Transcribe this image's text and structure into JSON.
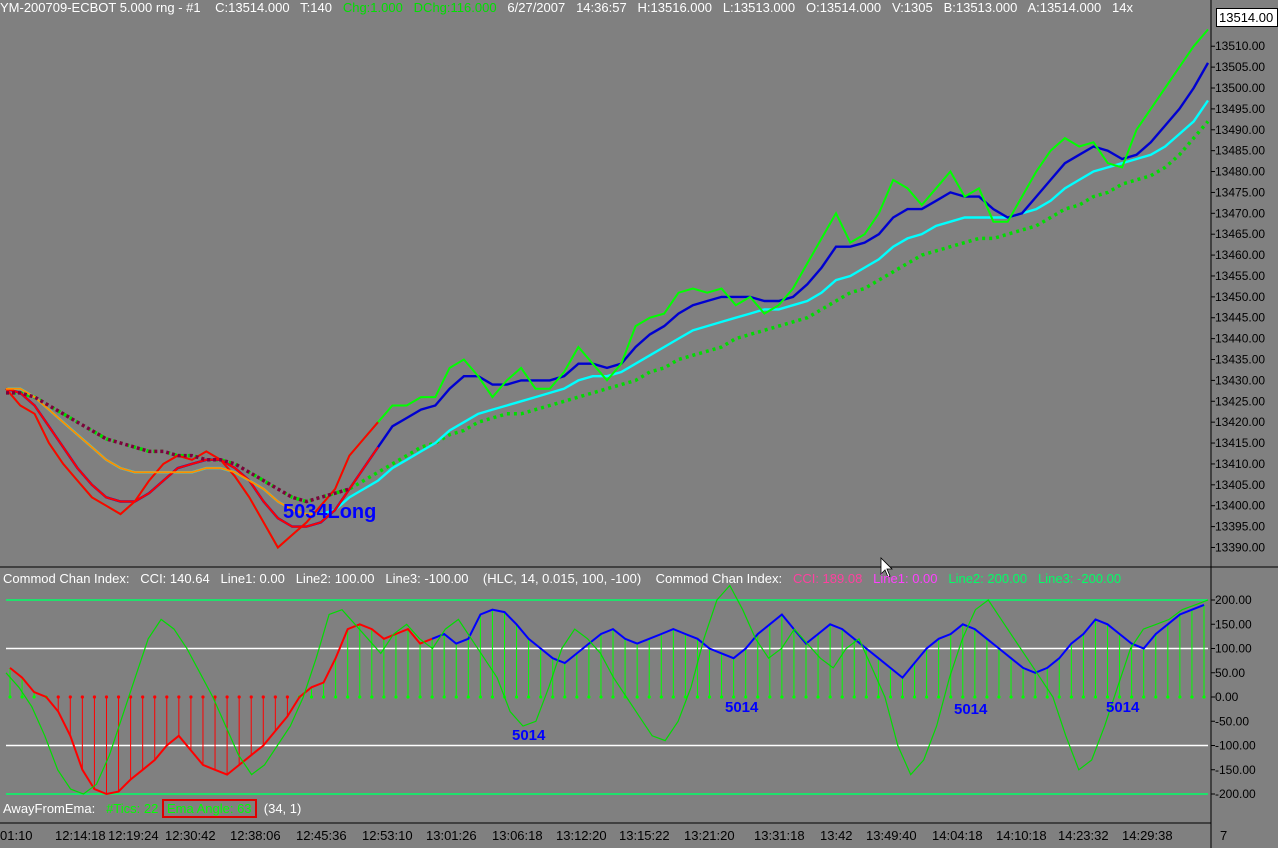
{
  "header": {
    "symbol": "YM-200709-ECBOT  5.000 rng - #1",
    "close": "C:13514.000",
    "ticks": "T:140",
    "chg": "Chg:1.000",
    "dchg": "DChg:116.000",
    "date": "6/27/2007",
    "time": "14:36:57",
    "high": "H:13516.000",
    "low": "L:13513.000",
    "open": "O:13514.000",
    "volume": "V:1305",
    "bid": "B:13513.000",
    "ask": "A:13514.000",
    "tail": "14x"
  },
  "price_marker": "13514.00",
  "indicator_info": {
    "cci1_name": "Commod Chan Index:",
    "cci1_val": "CCI: 140.64",
    "cci1_l1": "Line1: 0.00",
    "cci1_l2": "Line2: 100.00",
    "cci1_l3": "Line3: -100.00",
    "cci1_params": "(HLC, 14, 0.015, 100, -100)",
    "cci2_name": "Commod Chan Index:",
    "cci2_val": "CCI: 189.08",
    "cci2_l1": "Line1: 0.00",
    "cci2_l2": "Line2: 200.00",
    "cci2_l3": "Line3: -200.00"
  },
  "footer_indicator": {
    "name": "AwayFromEma:",
    "tics": "#Tics: 22",
    "angle": "Ema Angle: 63",
    "params": "(34, 1)"
  },
  "x_labels": [
    "01:10",
    "12:14:18",
    "12:19:24",
    "12:30:42",
    "12:38:06",
    "12:45:36",
    "12:53:10",
    "13:01:26",
    "13:06:18",
    "13:12:20",
    "13:15:22",
    "13:21:20",
    "13:31:18",
    "13:42",
    "13:49:40",
    "14:04:18",
    "14:10:18",
    "14:23:32",
    "14:29:38",
    "7"
  ],
  "annotations": {
    "long_label": "5034Long",
    "labels": [
      "5014",
      "5014",
      "5014",
      "5014"
    ]
  },
  "colors": {
    "background": "#808080",
    "price": "#00ff00",
    "ema_fast": "#0000d0",
    "ema_mid": "#00ffff",
    "ema_slow_dots": "#00dd00",
    "down": "#ff0000",
    "orange": "#ff8c00",
    "maroon_dots": "#800040"
  },
  "chart_data": [
    {
      "type": "line",
      "title": "",
      "y_ticks": [
        13514.0,
        13510.0,
        13505.0,
        13500.0,
        13495.0,
        13490.0,
        13485.0,
        13480.0,
        13475.0,
        13470.0,
        13465.0,
        13460.0,
        13455.0,
        13450.0,
        13445.0,
        13440.0,
        13435.0,
        13430.0,
        13425.0,
        13420.0,
        13415.0,
        13410.0,
        13405.0,
        13400.0,
        13395.0,
        13390.0
      ],
      "ylim": [
        13387,
        13517
      ],
      "bar_count": 200,
      "series": [
        {
          "values": [
            13428,
            13424,
            13422,
            13415,
            13410,
            13406,
            13402,
            13400,
            13398,
            13401,
            13406,
            13410,
            13412,
            13411,
            13413,
            13411,
            13407,
            13402,
            13396,
            13390,
            13393,
            13396,
            13400,
            13404,
            13412,
            13416,
            13420,
            13424,
            13424,
            13426,
            13426,
            13433,
            13435,
            13431,
            13426,
            13430,
            13433,
            13428,
            13428,
            13432,
            13438,
            13434,
            13430,
            13434,
            13443,
            13445,
            13446,
            13451,
            13452,
            13451,
            13452,
            13448,
            13450,
            13446,
            13448,
            13452,
            13458,
            13464,
            13470,
            13463,
            13465,
            13470,
            13478,
            13476,
            13472,
            13476,
            13480,
            13474,
            13476,
            13468,
            13468,
            13474,
            13480,
            13485,
            13488,
            13486,
            13487,
            13482,
            13481,
            13490,
            13495,
            13500,
            13505,
            13510,
            13514
          ]
        },
        {
          "values": [
            13428,
            13427,
            13424,
            13419,
            13414,
            13409,
            13405,
            13402,
            13401,
            13401,
            13403,
            13406,
            13409,
            13410,
            13411,
            13411,
            13409,
            13406,
            13401,
            13397,
            13395,
            13395,
            13396,
            13399,
            13404,
            13409,
            13414,
            13419,
            13421,
            13423,
            13424,
            13428,
            13431,
            13431,
            13429,
            13429,
            13430,
            13430,
            13430,
            13431,
            13434,
            13434,
            13433,
            13434,
            13438,
            13441,
            13443,
            13446,
            13448,
            13449,
            13450,
            13450,
            13450,
            13449,
            13449,
            13450,
            13453,
            13457,
            13462,
            13462,
            13463,
            13465,
            13469,
            13471,
            13471,
            13473,
            13475,
            13474,
            13474,
            13471,
            13469,
            13470,
            13474,
            13478,
            13482,
            13484,
            13486,
            13485,
            13483,
            13484,
            13487,
            13491,
            13495,
            13500,
            13506
          ]
        },
        {
          "values": [
            13428,
            13428,
            13426,
            13423,
            13420,
            13417,
            13414,
            13411,
            13409,
            13408,
            13408,
            13408,
            13408,
            13408,
            13409,
            13409,
            13408,
            13406,
            13404,
            13401,
            13399,
            13398,
            13398,
            13399,
            13402,
            13404,
            13406,
            13409,
            13411,
            13413,
            13415,
            13418,
            13420,
            13422,
            13423,
            13424,
            13425,
            13426,
            13427,
            13428,
            13430,
            13431,
            13431,
            13432,
            13434,
            13436,
            13438,
            13440,
            13442,
            13443,
            13444,
            13445,
            13446,
            13447,
            13447,
            13448,
            13449,
            13451,
            13454,
            13455,
            13457,
            13459,
            13462,
            13464,
            13465,
            13467,
            13468,
            13469,
            13469,
            13469,
            13469,
            13470,
            13471,
            13473,
            13476,
            13478,
            13480,
            13481,
            13482,
            13483,
            13484,
            13486,
            13489,
            13492,
            13497
          ]
        },
        {
          "values": [
            13427,
            13427,
            13426,
            13424,
            13422,
            13420,
            13418,
            13416,
            13415,
            13414,
            13413,
            13413,
            13412,
            13412,
            13411,
            13411,
            13410,
            13408,
            13406,
            13404,
            13402,
            13401,
            13402,
            13403,
            13404,
            13406,
            13408,
            13410,
            13412,
            13414,
            13415,
            13417,
            13418,
            13420,
            13421,
            13422,
            13422,
            13423,
            13424,
            13425,
            13426,
            13427,
            13428,
            13429,
            13430,
            13432,
            13433,
            13435,
            13436,
            13437,
            13438,
            13440,
            13441,
            13442,
            13443,
            13444,
            13445,
            13447,
            13449,
            13451,
            13452,
            13454,
            13456,
            13458,
            13460,
            13461,
            13462,
            13463,
            13464,
            13464,
            13465,
            13466,
            13467,
            13469,
            13471,
            13472,
            13474,
            13475,
            13477,
            13478,
            13479,
            13481,
            13484,
            13488,
            13492
          ]
        }
      ]
    },
    {
      "type": "bar",
      "title": "",
      "y_ticks": [
        200.0,
        150.0,
        100.0,
        50.0,
        0.0,
        -50.0,
        -100.0,
        -150.0,
        -200.0
      ],
      "ylim": [
        -210,
        210
      ],
      "series": [
        {
          "values": [
            60,
            40,
            10,
            0,
            -30,
            -80,
            -150,
            -190,
            -200,
            -195,
            -170,
            -150,
            -130,
            -100,
            -80,
            -110,
            -140,
            -150,
            -160,
            -140,
            -120,
            -100,
            -70,
            -40,
            0,
            20,
            30,
            80,
            140,
            150,
            140,
            120,
            130,
            140,
            110,
            120,
            130,
            110,
            120,
            170,
            180,
            175,
            150,
            120,
            100,
            80,
            70,
            90,
            110,
            130,
            140,
            120,
            110,
            120,
            130,
            140,
            130,
            120,
            100,
            90,
            80,
            100,
            130,
            150,
            170,
            140,
            110,
            130,
            150,
            140,
            120,
            100,
            80,
            60,
            40,
            70,
            100,
            120,
            130,
            150,
            140,
            120,
            100,
            80,
            60,
            50,
            60,
            80,
            110,
            130,
            160,
            150,
            130,
            110,
            100,
            130,
            150,
            170,
            180,
            190
          ]
        },
        {
          "values": [
            50,
            20,
            -20,
            -80,
            -150,
            -190,
            -200,
            -180,
            -120,
            -40,
            40,
            120,
            160,
            140,
            100,
            50,
            0,
            -60,
            -120,
            -160,
            -140,
            -100,
            -60,
            0,
            80,
            170,
            180,
            150,
            120,
            90,
            130,
            150,
            120,
            100,
            140,
            160,
            120,
            80,
            40,
            -30,
            -60,
            -50,
            20,
            100,
            140,
            120,
            90,
            40,
            0,
            -40,
            -80,
            -90,
            -50,
            20,
            120,
            200,
            230,
            180,
            120,
            80,
            100,
            140,
            110,
            80,
            60,
            100,
            120,
            60,
            0,
            -100,
            -160,
            -130,
            -60,
            40,
            120,
            180,
            200,
            160,
            120,
            80,
            40,
            0,
            -80,
            -150,
            -130,
            -60,
            20,
            100,
            140,
            150,
            160,
            180,
            190,
            200
          ]
        }
      ]
    }
  ]
}
